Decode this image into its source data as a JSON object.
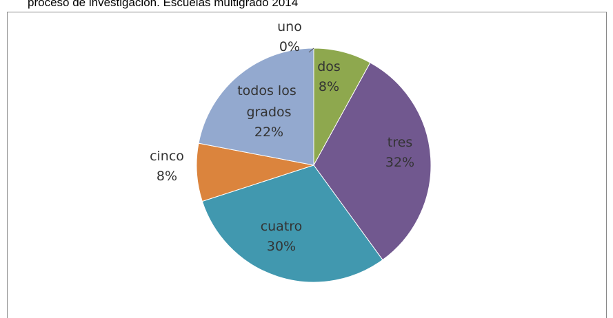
{
  "chart_data": {
    "type": "pie",
    "title": "proceso de investigación. Escuelas  multigrado 2014",
    "categories": [
      "uno",
      "dos",
      "tres",
      "cuatro",
      "cinco",
      "todos los grados"
    ],
    "values": [
      0,
      8,
      32,
      30,
      8,
      22
    ],
    "value_labels": [
      "0%",
      "8%",
      "32%",
      "30%",
      "8%",
      "22%"
    ],
    "colors": [
      "#4572A7",
      "#8EA84E",
      "#71588F",
      "#4198AF",
      "#DB843D",
      "#93A9CF"
    ]
  }
}
